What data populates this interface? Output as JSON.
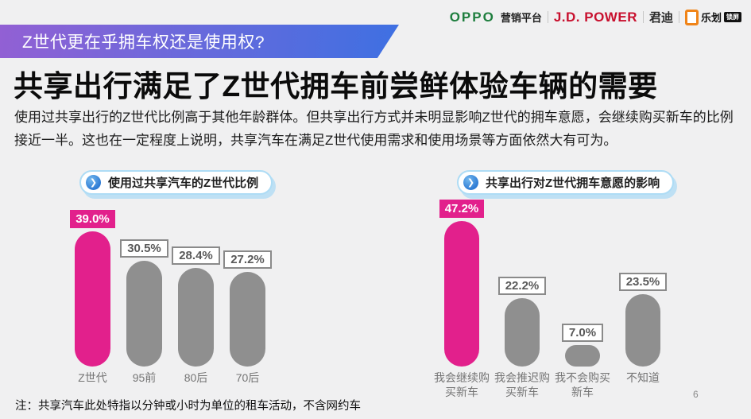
{
  "page": {
    "note": "注：共享汽车此处特指以分钟或小时为单位的租车活动，不含网约车",
    "page_number": "6",
    "background": "#F0F0F1"
  },
  "header_logos": {
    "oppo": "OPPO",
    "oppo_sub": "营销平台",
    "jdpower": "J.D. POWER",
    "jdpower_sub": "君迪",
    "lehua": "乐划",
    "lehua_badge": "锁屏"
  },
  "banner": {
    "text": "Z世代更在乎拥车权还是使用权?"
  },
  "title": "共享出行满足了Z世代拥车前尝鲜体验车辆的需要",
  "intro": "使用过共享出行的Z世代比例高于其他年龄群体。但共享出行方式并未明显影响Z世代的拥车意愿，会继续购买新车的比例接近一半。这也在一定程度上说明，共享汽车在满足Z世代使用需求和使用场景等方面依然大有可为。",
  "colors": {
    "highlight_pink": "#E2208C",
    "bar_gray": "#8F8F8F",
    "banner_gradient_from": "#9260D4",
    "banner_gradient_to": "#3E70E2",
    "pill_border_blue": "#AEDCF5",
    "oppo_green": "#1E7E3E",
    "jdpower_red": "#C8102E",
    "lehua_orange": "#F08418"
  },
  "chart_data": [
    {
      "type": "bar",
      "title": "使用过共享汽车的Z世代比例",
      "categories": [
        "Z世代",
        "95前",
        "80后",
        "70后"
      ],
      "values": [
        39.0,
        30.5,
        28.4,
        27.2
      ],
      "value_labels": [
        "39.0%",
        "30.5%",
        "28.4%",
        "27.2%"
      ],
      "highlight_index": 0,
      "ylabel": "",
      "xlabel": "",
      "unit": "%",
      "legend": "none",
      "grid": false
    },
    {
      "type": "bar",
      "title": "共享出行对Z世代拥车意愿的影响",
      "categories": [
        "我会继续购买新车",
        "我会推迟购买新车",
        "我不会购买新车",
        "不知道"
      ],
      "categories_wrapped": [
        [
          "我会继续购",
          "买新车"
        ],
        [
          "我会推迟购",
          "买新车"
        ],
        [
          "我不会购买",
          "新车"
        ],
        [
          "不知道"
        ]
      ],
      "values": [
        47.2,
        22.2,
        7.0,
        23.5
      ],
      "value_labels": [
        "47.2%",
        "22.2%",
        "7.0%",
        "23.5%"
      ],
      "highlight_index": 0,
      "ylabel": "",
      "xlabel": "",
      "unit": "%",
      "legend": "none",
      "grid": false
    }
  ]
}
